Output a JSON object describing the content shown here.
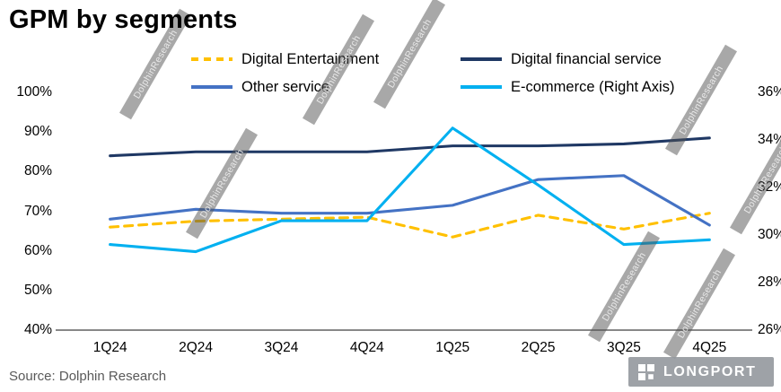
{
  "title": "GPM by segments",
  "source": "Source: Dolphin Research",
  "watermark": {
    "text": "DolphinResearch"
  },
  "logo": {
    "text": "LONGPORT",
    "icon": "grid-squares-icon"
  },
  "chart_data": {
    "type": "line",
    "title": "GPM by segments",
    "categories": [
      "1Q24",
      "2Q24",
      "3Q24",
      "4Q24",
      "1Q25",
      "2Q25",
      "3Q25",
      "4Q25"
    ],
    "series": [
      {
        "name": "Digital Entertainment",
        "axis": "left",
        "color": "#FFC000",
        "dashed": true,
        "values": [
          66,
          67.5,
          68,
          68.5,
          63.5,
          69,
          65.5,
          69.5
        ]
      },
      {
        "name": "Digital financial service",
        "axis": "left",
        "color": "#1F3864",
        "dashed": false,
        "values": [
          84,
          85,
          85,
          85,
          86.5,
          86.5,
          87,
          88.5
        ]
      },
      {
        "name": "Other service",
        "axis": "left",
        "color": "#4472C4",
        "dashed": false,
        "values": [
          68,
          70.5,
          69.5,
          69.5,
          71.5,
          78,
          79,
          66.5
        ]
      },
      {
        "name": "E-commerce (Right Axis)",
        "axis": "right",
        "color": "#00B0F0",
        "dashed": false,
        "values": [
          29.6,
          29.3,
          30.6,
          30.6,
          34.5,
          32.1,
          29.6,
          29.8
        ]
      }
    ],
    "left_axis": {
      "min": 40,
      "max": 100,
      "ticks": [
        "100%",
        "90%",
        "80%",
        "70%",
        "60%",
        "50%",
        "40%"
      ]
    },
    "right_axis": {
      "min": 26,
      "max": 36,
      "ticks": [
        "36%",
        "34%",
        "32%",
        "30%",
        "28%",
        "26%"
      ]
    },
    "legend_position": "top",
    "grid": false,
    "axis_line_color": "#404040"
  }
}
